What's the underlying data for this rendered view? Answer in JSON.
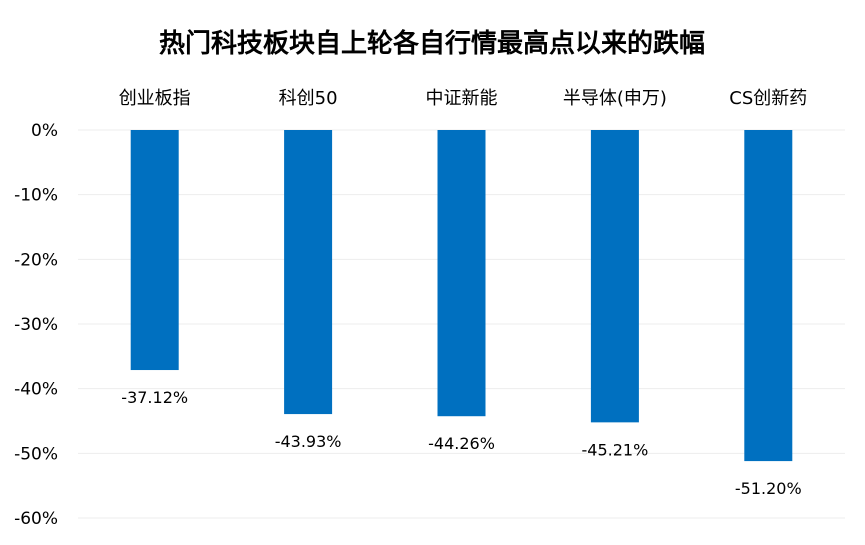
{
  "chart_data": {
    "type": "bar",
    "title": "热门科技板块自上轮各自行情最高点以来的跌幅",
    "categories": [
      "创业板指",
      "科创50",
      "中证新能",
      "半导体(申万)",
      "CS创新药"
    ],
    "values": [
      -37.12,
      -43.93,
      -44.26,
      -45.21,
      -51.2
    ],
    "value_labels": [
      "-37.12%",
      "-43.93%",
      "-44.26%",
      "-45.21%",
      "-51.20%"
    ],
    "ylim": [
      -60,
      0
    ],
    "yticks": [
      0,
      -10,
      -20,
      -30,
      -40,
      -50,
      -60
    ],
    "ytick_labels": [
      "0%",
      "-10%",
      "-20%",
      "-30%",
      "-40%",
      "-50%",
      "-60%"
    ],
    "xlabel": "",
    "ylabel": "",
    "category_axis_position": "top",
    "grid": true,
    "legend": "none",
    "bar_color": "#0070C0",
    "grid_color": "#EDEDED",
    "text_color": "#000000"
  }
}
